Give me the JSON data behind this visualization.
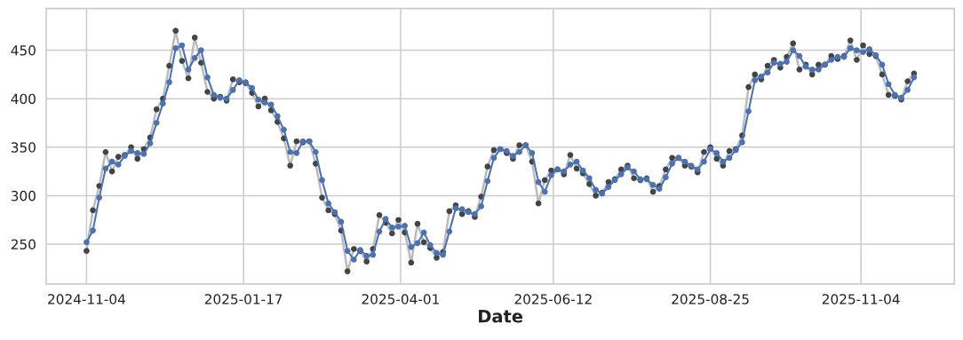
{
  "chart_data": {
    "type": "line",
    "xlabel": "Date",
    "x": [
      "2024-11-04",
      "2024-11-07",
      "2024-11-10",
      "2024-11-13",
      "2024-11-16",
      "2024-11-19",
      "2024-11-22",
      "2024-11-25",
      "2024-11-28",
      "2024-12-01",
      "2024-12-04",
      "2024-12-07",
      "2024-12-10",
      "2024-12-13",
      "2024-12-16",
      "2024-12-19",
      "2024-12-22",
      "2024-12-25",
      "2024-12-28",
      "2024-12-31",
      "2025-01-03",
      "2025-01-06",
      "2025-01-09",
      "2025-01-12",
      "2025-01-15",
      "2025-01-18",
      "2025-01-21",
      "2025-01-24",
      "2025-01-27",
      "2025-01-30",
      "2025-02-02",
      "2025-02-05",
      "2025-02-08",
      "2025-02-11",
      "2025-02-14",
      "2025-02-17",
      "2025-02-20",
      "2025-02-23",
      "2025-02-26",
      "2025-03-01",
      "2025-03-04",
      "2025-03-07",
      "2025-03-10",
      "2025-03-13",
      "2025-03-16",
      "2025-03-19",
      "2025-03-22",
      "2025-03-25",
      "2025-03-28",
      "2025-03-31",
      "2025-04-03",
      "2025-04-06",
      "2025-04-09",
      "2025-04-12",
      "2025-04-15",
      "2025-04-18",
      "2025-04-21",
      "2025-04-24",
      "2025-04-27",
      "2025-04-30",
      "2025-05-03",
      "2025-05-06",
      "2025-05-09",
      "2025-05-12",
      "2025-05-15",
      "2025-05-18",
      "2025-05-21",
      "2025-05-24",
      "2025-05-27",
      "2025-05-30",
      "2025-06-02",
      "2025-06-05",
      "2025-06-08",
      "2025-06-11",
      "2025-06-14",
      "2025-06-17",
      "2025-06-20",
      "2025-06-23",
      "2025-06-26",
      "2025-06-29",
      "2025-07-02",
      "2025-07-05",
      "2025-07-08",
      "2025-07-11",
      "2025-07-14",
      "2025-07-17",
      "2025-07-20",
      "2025-07-23",
      "2025-07-26",
      "2025-07-29",
      "2025-08-01",
      "2025-08-04",
      "2025-08-07",
      "2025-08-10",
      "2025-08-13",
      "2025-08-16",
      "2025-08-19",
      "2025-08-22",
      "2025-08-25",
      "2025-08-28",
      "2025-08-31",
      "2025-09-03",
      "2025-09-06",
      "2025-09-09",
      "2025-09-12",
      "2025-09-15",
      "2025-09-18",
      "2025-09-21",
      "2025-09-24",
      "2025-09-27",
      "2025-09-30",
      "2025-10-03",
      "2025-10-06",
      "2025-10-09",
      "2025-10-12",
      "2025-10-15",
      "2025-10-18",
      "2025-10-21",
      "2025-10-24",
      "2025-10-27",
      "2025-10-30",
      "2025-11-02",
      "2025-11-05",
      "2025-11-08",
      "2025-11-11",
      "2025-11-14",
      "2025-11-17",
      "2025-11-20",
      "2025-11-23",
      "2025-11-26",
      "2025-11-29"
    ],
    "series": [
      {
        "color": "#444444",
        "values": [
          243,
          285,
          310,
          345,
          325,
          340,
          342,
          350,
          338,
          348,
          360,
          389,
          400,
          434,
          470,
          439,
          421,
          463,
          437,
          407,
          400,
          402,
          398,
          420,
          417,
          416,
          406,
          392,
          400,
          388,
          376,
          359,
          331,
          356,
          355,
          356,
          333,
          298,
          285,
          281,
          264,
          222,
          245,
          243,
          232,
          245,
          280,
          272,
          261,
          275,
          262,
          231,
          271,
          252,
          246,
          236,
          242,
          284,
          290,
          281,
          284,
          278,
          299,
          330,
          347,
          348,
          344,
          338,
          352,
          352,
          335,
          292,
          316,
          326,
          327,
          322,
          342,
          328,
          323,
          312,
          300,
          303,
          314,
          317,
          327,
          331,
          318,
          316,
          318,
          304,
          310,
          327,
          339,
          339,
          331,
          330,
          324,
          345,
          350,
          338,
          331,
          346,
          348,
          362,
          412,
          425,
          420,
          434,
          440,
          432,
          443,
          457,
          430,
          435,
          425,
          435,
          435,
          444,
          441,
          444,
          460,
          440,
          455,
          446,
          444,
          425,
          404,
          403,
          399,
          418,
          426
        ]
      },
      {
        "color": "#4c72b0",
        "values": [
          252,
          264,
          298,
          328,
          335,
          332,
          341,
          346,
          344,
          343,
          354,
          375,
          395,
          417,
          452,
          455,
          430,
          442,
          450,
          422,
          404,
          401,
          400,
          409,
          419,
          417,
          411,
          399,
          396,
          394,
          382,
          368,
          345,
          344,
          356,
          356,
          345,
          316,
          292,
          283,
          273,
          243,
          234,
          244,
          238,
          239,
          263,
          276,
          267,
          268,
          269,
          247,
          251,
          262,
          249,
          241,
          239,
          263,
          287,
          286,
          283,
          281,
          289,
          315,
          339,
          348,
          346,
          341,
          345,
          352,
          344,
          314,
          304,
          321,
          327,
          325,
          332,
          335,
          326,
          318,
          306,
          302,
          309,
          316,
          322,
          329,
          325,
          317,
          317,
          311,
          307,
          319,
          333,
          339,
          335,
          331,
          327,
          335,
          348,
          344,
          335,
          339,
          347,
          355,
          387,
          419,
          423,
          427,
          437,
          436,
          438,
          450,
          444,
          433,
          430,
          430,
          435,
          440,
          443,
          443,
          452,
          450,
          448,
          451,
          445,
          435,
          415,
          404,
          401,
          409,
          422
        ]
      }
    ],
    "xlim": [
      "2024-10-16",
      "2025-12-18"
    ],
    "xticks": [
      "2024-11-04",
      "2025-01-17",
      "2025-04-01",
      "2025-06-12",
      "2025-08-25",
      "2025-11-04"
    ],
    "ylim": [
      209,
      493
    ],
    "yticks": [
      250,
      300,
      350,
      400,
      450
    ],
    "grid": true,
    "marker": "circle",
    "line_style": "solid"
  }
}
